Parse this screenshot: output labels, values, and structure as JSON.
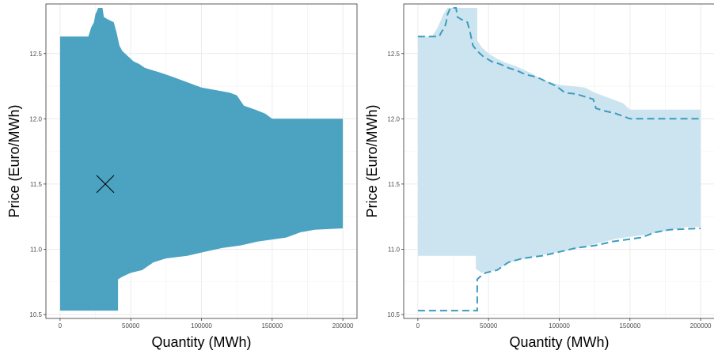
{
  "chart_data": [
    {
      "type": "area",
      "xlabel": "Quantity (MWh)",
      "ylabel": "Price (Euro/MWh)",
      "xlim": [
        -10000,
        210000
      ],
      "ylim": [
        10.47,
        12.88
      ],
      "x_ticks": [
        0,
        50000,
        100000,
        150000,
        200000
      ],
      "x_tick_labels": [
        "0",
        "50000",
        "100000",
        "150000",
        "200000"
      ],
      "y_ticks": [
        10.5,
        11.0,
        11.5,
        12.0,
        12.5
      ],
      "y_tick_labels": [
        "10.5",
        "11.0",
        "11.5",
        "12.0",
        "12.5"
      ],
      "grid": true,
      "fill_color": "#4ba3c1",
      "series": [
        {
          "upper": [
            [
              0,
              12.63
            ],
            [
              20000,
              12.63
            ],
            [
              22000,
              12.7
            ],
            [
              24000,
              12.74
            ],
            [
              25000,
              12.8
            ],
            [
              27000,
              12.85
            ],
            [
              30000,
              12.85
            ],
            [
              31000,
              12.78
            ],
            [
              34000,
              12.76
            ],
            [
              38000,
              12.74
            ],
            [
              40000,
              12.66
            ],
            [
              41000,
              12.61
            ],
            [
              42000,
              12.56
            ],
            [
              44000,
              12.52
            ],
            [
              48000,
              12.48
            ],
            [
              52000,
              12.44
            ],
            [
              56000,
              12.42
            ],
            [
              60000,
              12.39
            ],
            [
              66000,
              12.37
            ],
            [
              72000,
              12.35
            ],
            [
              80000,
              12.32
            ],
            [
              90000,
              12.28
            ],
            [
              100000,
              12.24
            ],
            [
              110000,
              12.22
            ],
            [
              120000,
              12.2
            ],
            [
              125000,
              12.18
            ],
            [
              130000,
              12.1
            ],
            [
              138000,
              12.07
            ],
            [
              145000,
              12.04
            ],
            [
              150000,
              12.0
            ],
            [
              200000,
              12.0
            ]
          ],
          "lower": [
            [
              0,
              10.53
            ],
            [
              41000,
              10.53
            ],
            [
              41000,
              10.77
            ],
            [
              44000,
              10.79
            ],
            [
              50000,
              10.82
            ],
            [
              58000,
              10.84
            ],
            [
              66000,
              10.9
            ],
            [
              75000,
              10.93
            ],
            [
              90000,
              10.95
            ],
            [
              102000,
              10.98
            ],
            [
              115000,
              11.01
            ],
            [
              128000,
              11.03
            ],
            [
              140000,
              11.06
            ],
            [
              160000,
              11.09
            ],
            [
              170000,
              11.13
            ],
            [
              180000,
              11.15
            ],
            [
              200000,
              11.16
            ]
          ]
        }
      ],
      "marker": {
        "x": 32000,
        "y": 11.5,
        "symbol": "x"
      }
    },
    {
      "type": "area",
      "xlabel": "Quantity (MWh)",
      "ylabel": "Price (Euro/MWh)",
      "xlim": [
        -10000,
        210000
      ],
      "ylim": [
        10.47,
        12.88
      ],
      "x_ticks": [
        0,
        50000,
        100000,
        150000,
        200000
      ],
      "x_tick_labels": [
        "0",
        "50000",
        "100000",
        "150000",
        "200000"
      ],
      "y_ticks": [
        10.5,
        11.0,
        11.5,
        12.0,
        12.5
      ],
      "y_tick_labels": [
        "10.5",
        "11.0",
        "11.5",
        "12.0",
        "12.5"
      ],
      "grid": true,
      "band_color": "#cbe4ef",
      "line_color": "#3d9cbf",
      "band": {
        "upper": [
          [
            0,
            12.63
          ],
          [
            10000,
            12.63
          ],
          [
            14000,
            12.7
          ],
          [
            18000,
            12.8
          ],
          [
            21000,
            12.85
          ],
          [
            42000,
            12.85
          ],
          [
            42000,
            12.6
          ],
          [
            45000,
            12.55
          ],
          [
            50000,
            12.5
          ],
          [
            56000,
            12.46
          ],
          [
            62000,
            12.43
          ],
          [
            70000,
            12.4
          ],
          [
            80000,
            12.35
          ],
          [
            88000,
            12.3
          ],
          [
            100000,
            12.26
          ],
          [
            118000,
            12.24
          ],
          [
            125000,
            12.2
          ],
          [
            135000,
            12.16
          ],
          [
            145000,
            12.12
          ],
          [
            150000,
            12.07
          ],
          [
            200000,
            12.07
          ]
        ],
        "lower": [
          [
            0,
            10.95
          ],
          [
            41000,
            10.95
          ],
          [
            41000,
            10.85
          ],
          [
            45000,
            10.82
          ],
          [
            55000,
            10.84
          ],
          [
            65000,
            10.9
          ],
          [
            80000,
            10.94
          ],
          [
            95000,
            10.97
          ],
          [
            110000,
            11.0
          ],
          [
            125000,
            11.04
          ],
          [
            140000,
            11.08
          ],
          [
            160000,
            11.11
          ],
          [
            175000,
            11.14
          ],
          [
            190000,
            11.17
          ],
          [
            200000,
            11.17
          ]
        ]
      },
      "series": [
        {
          "values": [
            [
              0,
              12.63
            ],
            [
              15000,
              12.63
            ],
            [
              17000,
              12.67
            ],
            [
              19000,
              12.7
            ],
            [
              20000,
              12.74
            ],
            [
              21000,
              12.8
            ],
            [
              23000,
              12.85
            ],
            [
              27000,
              12.85
            ],
            [
              28000,
              12.78
            ],
            [
              31000,
              12.76
            ],
            [
              35000,
              12.74
            ],
            [
              37000,
              12.66
            ],
            [
              38000,
              12.61
            ],
            [
              39000,
              12.56
            ],
            [
              42000,
              12.52
            ],
            [
              46000,
              12.48
            ],
            [
              52000,
              12.44
            ],
            [
              58000,
              12.42
            ],
            [
              64000,
              12.39
            ],
            [
              70000,
              12.37
            ],
            [
              76000,
              12.34
            ],
            [
              84000,
              12.32
            ],
            [
              92000,
              12.28
            ],
            [
              98000,
              12.25
            ],
            [
              104000,
              12.2
            ],
            [
              112000,
              12.19
            ],
            [
              118000,
              12.17
            ],
            [
              124000,
              12.15
            ],
            [
              126000,
              12.08
            ],
            [
              132000,
              12.06
            ],
            [
              140000,
              12.04
            ],
            [
              150000,
              12.0
            ],
            [
              200000,
              12.0
            ]
          ]
        },
        {
          "values": [
            [
              0,
              10.53
            ],
            [
              42000,
              10.53
            ],
            [
              42000,
              10.77
            ],
            [
              44000,
              10.79
            ],
            [
              48000,
              10.82
            ],
            [
              56000,
              10.84
            ],
            [
              64000,
              10.9
            ],
            [
              74000,
              10.93
            ],
            [
              88000,
              10.95
            ],
            [
              100000,
              10.98
            ],
            [
              112000,
              11.01
            ],
            [
              126000,
              11.03
            ],
            [
              138000,
              11.06
            ],
            [
              158000,
              11.09
            ],
            [
              168000,
              11.13
            ],
            [
              178000,
              11.15
            ],
            [
              200000,
              11.16
            ]
          ]
        }
      ]
    }
  ]
}
